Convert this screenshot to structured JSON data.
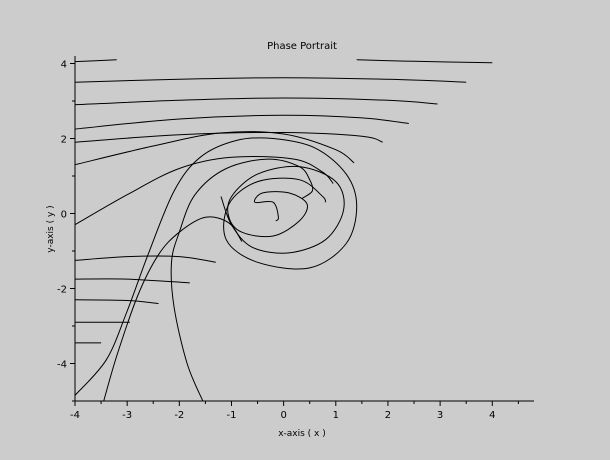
{
  "chart_data": {
    "type": "line",
    "title": "Phase Portrait",
    "xlabel": "x-axis ( x )",
    "ylabel": "y-axis ( y )",
    "xlim": [
      -4,
      4.8
    ],
    "ylim": [
      -5,
      4.2
    ],
    "x_ticks": [
      -4,
      -3,
      -2,
      -1,
      0,
      1,
      2,
      3,
      4
    ],
    "y_ticks": [
      -4,
      -2,
      0,
      2,
      4
    ],
    "x_tick_labels": [
      "-4",
      "-3",
      "-2",
      "-1",
      "0",
      "1",
      "2",
      "3",
      "4"
    ],
    "y_tick_labels": [
      "-4",
      "-2",
      "0",
      "2",
      "4"
    ],
    "grid": false,
    "series": [
      {
        "points": [
          [
            -4,
            4.05
          ],
          [
            -3.2,
            4.1
          ]
        ]
      },
      {
        "points": [
          [
            1.4,
            4.1
          ],
          [
            2.5,
            4.06
          ],
          [
            4,
            4.02
          ]
        ]
      },
      {
        "points": [
          [
            -4,
            3.5
          ],
          [
            -2,
            3.58
          ],
          [
            0,
            3.62
          ],
          [
            2,
            3.58
          ],
          [
            3.5,
            3.5
          ]
        ]
      },
      {
        "points": [
          [
            -4,
            2.9
          ],
          [
            -2,
            3.02
          ],
          [
            0,
            3.08
          ],
          [
            2,
            3.02
          ],
          [
            2.95,
            2.92
          ]
        ]
      },
      {
        "points": [
          [
            -4,
            2.25
          ],
          [
            -2,
            2.52
          ],
          [
            0,
            2.62
          ],
          [
            1.5,
            2.55
          ],
          [
            2.4,
            2.4
          ]
        ]
      },
      {
        "points": [
          [
            -4,
            1.9
          ],
          [
            -2,
            2.1
          ],
          [
            0,
            2.16
          ],
          [
            1.5,
            2.06
          ],
          [
            1.9,
            1.9
          ]
        ]
      },
      {
        "points": [
          [
            -4,
            1.3
          ],
          [
            -2.5,
            1.8
          ],
          [
            -1.2,
            2.15
          ],
          [
            0,
            2.12
          ],
          [
            1.0,
            1.7
          ],
          [
            1.35,
            1.35
          ]
        ]
      },
      {
        "points": [
          [
            -4,
            -0.3
          ],
          [
            -3,
            0.5
          ],
          [
            -2,
            1.2
          ],
          [
            -1,
            1.5
          ],
          [
            0.2,
            1.45
          ],
          [
            0.75,
            1.1
          ],
          [
            0.95,
            0.8
          ]
        ]
      },
      {
        "points": [
          [
            -4,
            -4.85
          ],
          [
            -3.4,
            -3.9
          ],
          [
            -3,
            -2.6
          ],
          [
            -2.6,
            -1.1
          ],
          [
            -2.1,
            0.6
          ],
          [
            -1.6,
            1.5
          ],
          [
            -0.9,
            1.95
          ],
          [
            -0.2,
            2.0
          ],
          [
            0.6,
            1.75
          ],
          [
            1.2,
            1.05
          ],
          [
            1.4,
            0.2
          ],
          [
            1.2,
            -0.8
          ],
          [
            0.5,
            -1.45
          ],
          [
            -0.5,
            -1.3
          ],
          [
            -1.1,
            -0.7
          ],
          [
            -1.05,
            0.25
          ],
          [
            -0.5,
            0.85
          ],
          [
            0.3,
            0.9
          ],
          [
            0.75,
            0.45
          ],
          [
            0.8,
            0.3
          ]
        ]
      },
      {
        "points": [
          [
            -3.45,
            -5.0
          ],
          [
            -3.2,
            -3.8
          ],
          [
            -2.8,
            -2.2
          ],
          [
            -2.4,
            -1.1
          ],
          [
            -2.0,
            -0.5
          ],
          [
            -1.5,
            -0.1
          ],
          [
            -1.05,
            -0.25
          ],
          [
            -0.8,
            -0.75
          ]
        ]
      },
      {
        "points": [
          [
            -1.55,
            -5.0
          ],
          [
            -1.85,
            -4.0
          ],
          [
            -2.1,
            -2.5
          ],
          [
            -2.15,
            -1.3
          ],
          [
            -2.0,
            -0.5
          ],
          [
            -1.7,
            0.5
          ],
          [
            -1.1,
            1.2
          ],
          [
            -0.3,
            1.45
          ],
          [
            0.3,
            1.25
          ],
          [
            0.5,
            0.9
          ],
          [
            0.55,
            0.6
          ],
          [
            0.35,
            0.4
          ]
        ]
      },
      {
        "points": [
          [
            -1.2,
            0.45
          ],
          [
            -1.0,
            -0.3
          ],
          [
            -0.6,
            -0.9
          ],
          [
            0.1,
            -1.05
          ],
          [
            0.8,
            -0.7
          ],
          [
            1.15,
            0.1
          ],
          [
            1.0,
            0.85
          ],
          [
            0.3,
            1.25
          ],
          [
            -0.5,
            1.05
          ],
          [
            -1.0,
            0.45
          ],
          [
            -1.05,
            -0.1
          ],
          [
            -0.8,
            -0.5
          ],
          [
            -0.2,
            -0.6
          ],
          [
            0.3,
            -0.2
          ],
          [
            0.45,
            0.25
          ],
          [
            0.1,
            0.55
          ],
          [
            -0.4,
            0.55
          ],
          [
            -0.55,
            0.3
          ],
          [
            -0.2,
            0.3
          ],
          [
            -0.1,
            -0.1
          ],
          [
            -0.15,
            -0.2
          ]
        ]
      },
      {
        "points": [
          [
            -4,
            -1.25
          ],
          [
            -3,
            -1.15
          ],
          [
            -2,
            -1.15
          ],
          [
            -1.3,
            -1.3
          ]
        ]
      },
      {
        "points": [
          [
            -4,
            -1.75
          ],
          [
            -3,
            -1.75
          ],
          [
            -1.8,
            -1.85
          ]
        ]
      },
      {
        "points": [
          [
            -4,
            -2.3
          ],
          [
            -3,
            -2.32
          ],
          [
            -2.4,
            -2.4
          ]
        ]
      },
      {
        "points": [
          [
            -4,
            -2.9
          ],
          [
            -2.95,
            -2.9
          ]
        ]
      },
      {
        "points": [
          [
            -4,
            -3.45
          ],
          [
            -3.5,
            -3.45
          ]
        ]
      }
    ]
  }
}
